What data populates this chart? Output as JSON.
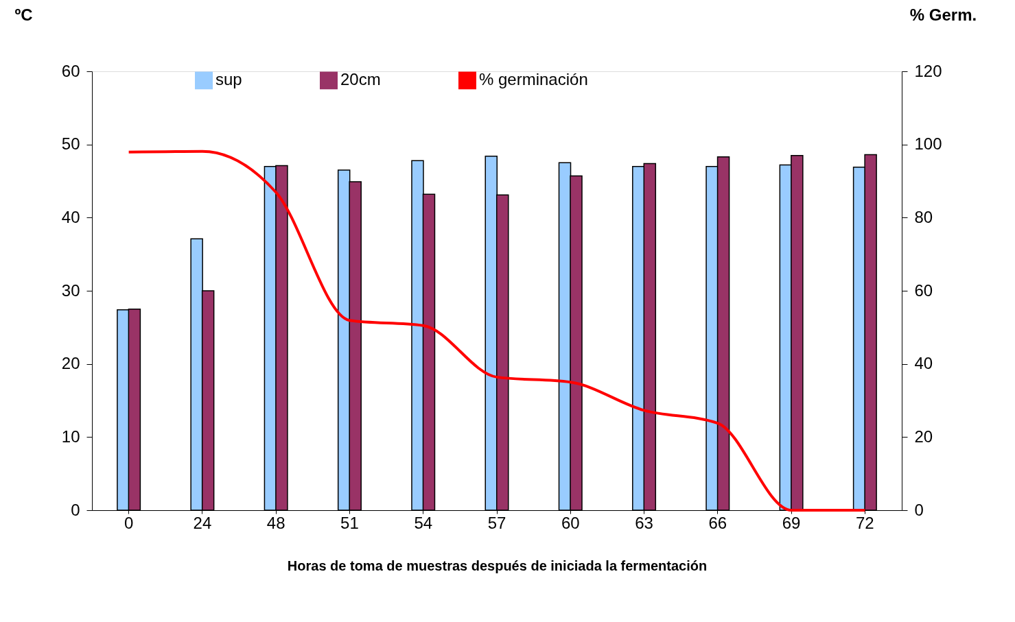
{
  "chart_data": {
    "type": "bar",
    "xlabel": "Horas de toma de muestras después de iniciada la fermentación",
    "ylabel": "ºC",
    "y2label": "% Germ.",
    "categories": [
      "0",
      "24",
      "48",
      "51",
      "54",
      "57",
      "60",
      "63",
      "66",
      "69",
      "72"
    ],
    "series": [
      {
        "name": "sup",
        "color": "#99ccff",
        "values": [
          27.4,
          37.1,
          47.0,
          46.5,
          47.8,
          48.4,
          47.5,
          47.0,
          47.0,
          47.2,
          46.9
        ]
      },
      {
        "name": "20cm",
        "color": "#993366",
        "values": [
          27.5,
          30.0,
          47.1,
          44.9,
          43.2,
          43.1,
          45.7,
          47.4,
          48.3,
          48.5,
          48.6
        ]
      },
      {
        "name": "% germinación",
        "color": "#ff0000",
        "type": "line",
        "axis": "y2",
        "values": [
          97.9,
          98.1,
          86.9,
          51.9,
          50.5,
          36.4,
          35.0,
          27.3,
          23.8,
          0,
          0
        ]
      }
    ],
    "ylim": [
      0,
      60
    ],
    "yticks": [
      0,
      10,
      20,
      30,
      40,
      50,
      60
    ],
    "y2lim": [
      0,
      120
    ],
    "y2ticks": [
      0,
      20,
      40,
      60,
      80,
      100,
      120
    ],
    "grid": false,
    "legend": "top",
    "marker": "none",
    "line_style": "solid"
  }
}
